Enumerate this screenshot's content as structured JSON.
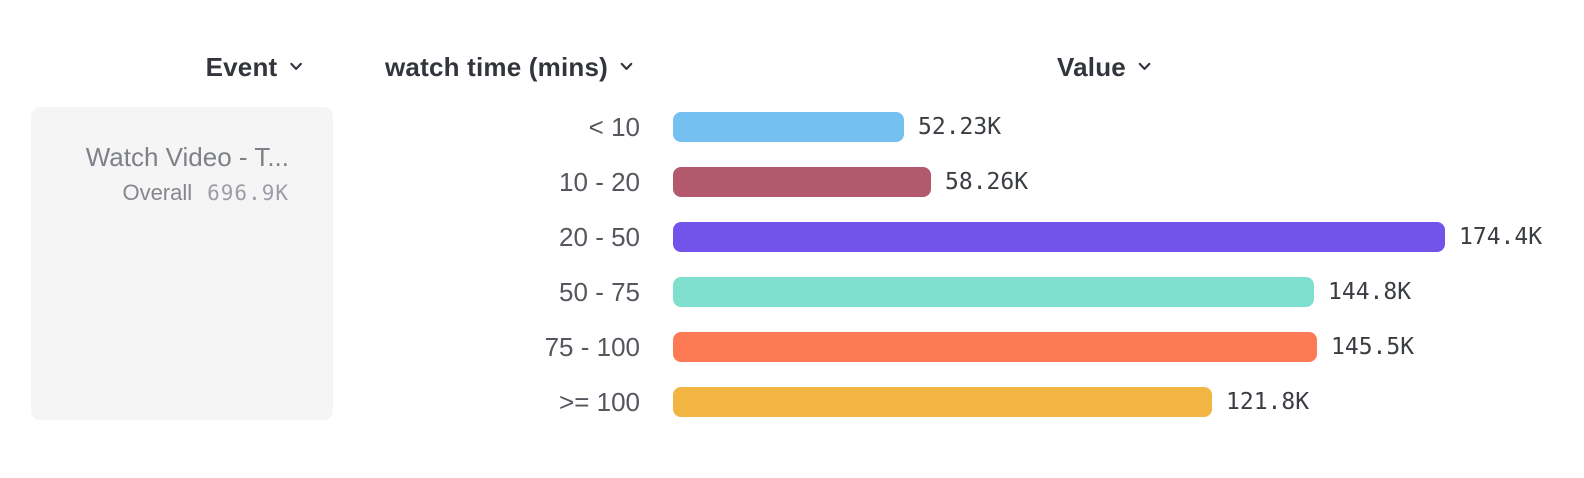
{
  "header": {
    "event": {
      "label": "Event"
    },
    "breakdown": {
      "label": "watch time (mins)"
    },
    "value": {
      "label": "Value"
    }
  },
  "event_card": {
    "title": "Watch Video - T...",
    "overall_label": "Overall",
    "overall_value": "696.9K"
  },
  "chart_data": {
    "type": "bar",
    "orientation": "horizontal",
    "title": "",
    "xlabel": "Value",
    "ylabel": "watch time (mins)",
    "categories": [
      "< 10",
      "10 - 20",
      "20 - 50",
      "50 - 75",
      "75 - 100",
      ">= 100"
    ],
    "values": [
      52230,
      58260,
      174400,
      144800,
      145500,
      121800
    ],
    "value_labels": [
      "52.23K",
      "58.26K",
      "174.4K",
      "144.8K",
      "145.5K",
      "121.8K"
    ],
    "bar_colors": [
      "#74c0f1",
      "#b2596d",
      "#7354eb",
      "#80e0cf",
      "#fd7a55",
      "#f2b442"
    ],
    "xlim": [
      0,
      174400
    ],
    "grid": false,
    "legend": false
  },
  "colors": {
    "card_bg": "#f5f5f6",
    "header_text": "#32353b",
    "category_text": "#54575d",
    "value_text": "#3a3d42"
  }
}
